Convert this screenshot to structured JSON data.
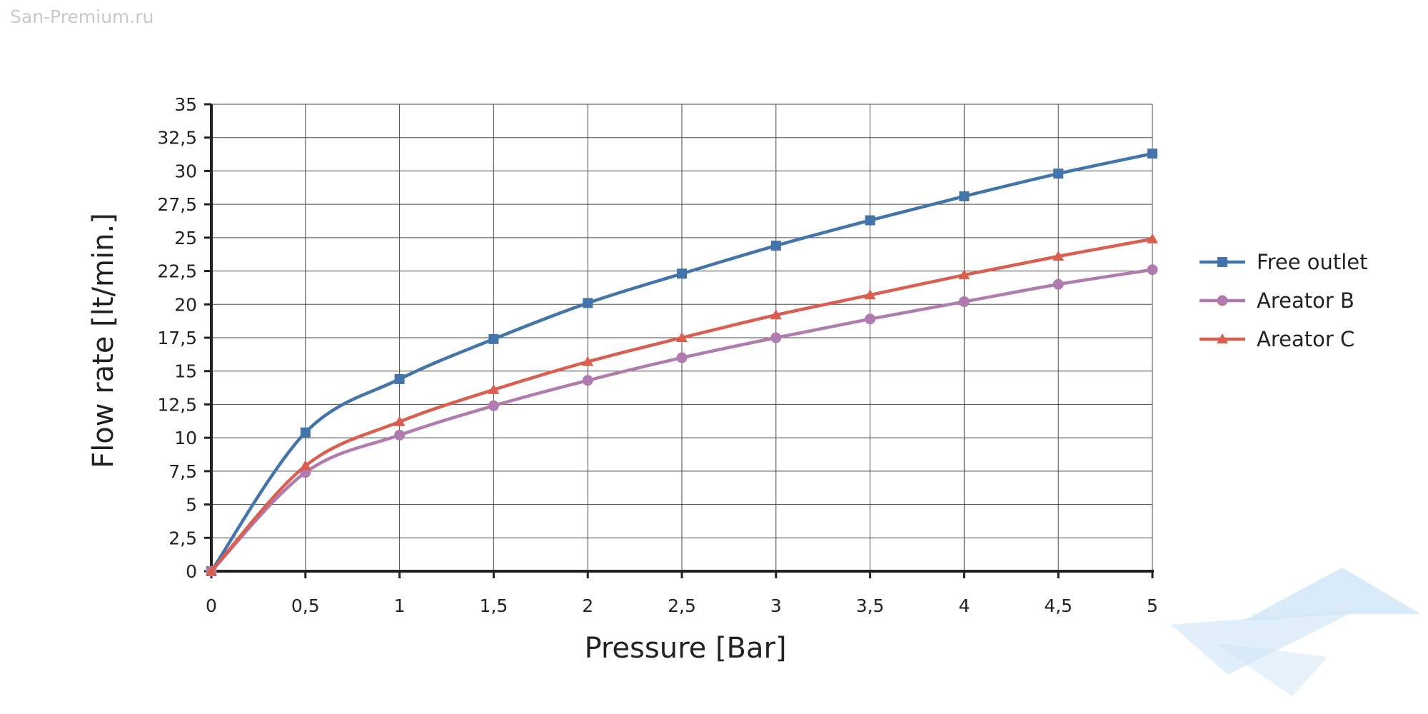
{
  "watermark": {
    "text": "San-Premium.ru",
    "logo_icon": "paper-plane-logo-icon",
    "logo_color": "#cfe6f6"
  },
  "chart_data": {
    "type": "line",
    "title": "",
    "xlabel": "Pressure [Bar]",
    "ylabel": "Flow rate [lt/min.]",
    "x": [
      0,
      0.5,
      1,
      1.5,
      2,
      2.5,
      3,
      3.5,
      4,
      4.5,
      5
    ],
    "x_tick_labels": [
      "0",
      "0,5",
      "1",
      "1,5",
      "2",
      "2,5",
      "3",
      "3,5",
      "4",
      "4,5",
      "5"
    ],
    "y_tick_labels": [
      "0",
      "2,5",
      "5",
      "7,5",
      "10",
      "12,5",
      "15",
      "17,5",
      "20",
      "22,5",
      "25",
      "27,5",
      "30",
      "32,5",
      "35"
    ],
    "xlim": [
      0,
      5
    ],
    "ylim": [
      0,
      35
    ],
    "grid": true,
    "legend_position": "right",
    "series": [
      {
        "name": "Free outlet",
        "color": "#4374aa",
        "marker": "square",
        "values": [
          0,
          10.4,
          14.4,
          17.4,
          20.1,
          22.3,
          24.4,
          26.3,
          28.1,
          29.8,
          31.3
        ]
      },
      {
        "name": "Areator B",
        "color": "#b07cb0",
        "marker": "circle",
        "values": [
          0,
          7.4,
          10.2,
          12.4,
          14.3,
          16.0,
          17.5,
          18.9,
          20.2,
          21.5,
          22.6
        ]
      },
      {
        "name": "Areator C",
        "color": "#d95f50",
        "marker": "triangle",
        "values": [
          0,
          7.9,
          11.2,
          13.6,
          15.7,
          17.5,
          19.2,
          20.7,
          22.2,
          23.6,
          24.9
        ]
      }
    ]
  }
}
